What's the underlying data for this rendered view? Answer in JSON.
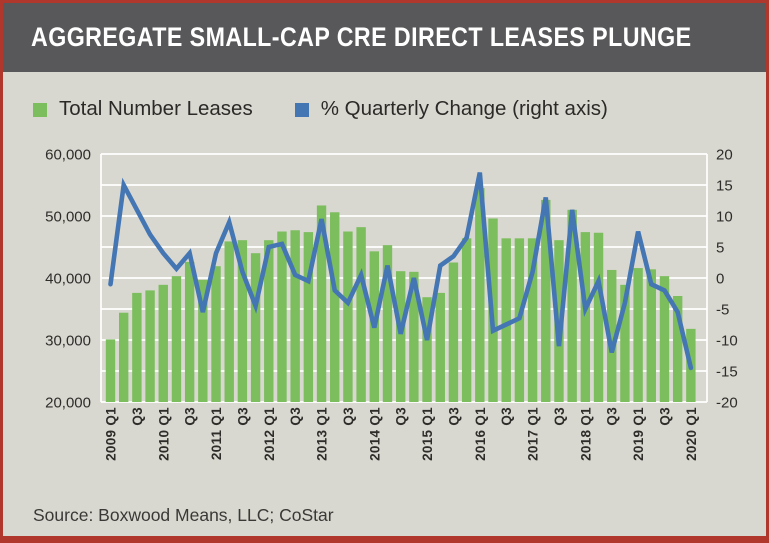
{
  "header": {
    "title": "AGGREGATE SMALL-CAP CRE DIRECT LEASES PLUNGE"
  },
  "legend": [
    {
      "label": "Total Number Leases",
      "color": "#7cbd5e"
    },
    {
      "label": "% Quarterly Change (right axis)",
      "color": "#4576b4"
    }
  ],
  "source": "Source: Boxwood Means, LLC; CoStar",
  "colors": {
    "bar": "#7cbd5e",
    "line": "#4576b4",
    "background": "#d9d8d0",
    "title_bar": "#58585a",
    "title_text": "#ffffff",
    "border": "#b0372b",
    "grid": "#ffffff",
    "axis_text": "#2e2d2a"
  },
  "chart_data": {
    "type": "bar",
    "title": "AGGREGATE SMALL-CAP CRE DIRECT LEASES PLUNGE",
    "xlabel": "",
    "ylabel_left": "Total Number Leases",
    "ylabel_right": "% Quarterly Change",
    "grid": true,
    "legend_position": "top",
    "categories": [
      "2009 Q1",
      "2009 Q2",
      "2009 Q3",
      "2009 Q4",
      "2010 Q1",
      "2010 Q2",
      "2010 Q3",
      "2010 Q4",
      "2011 Q1",
      "2011 Q2",
      "2011 Q3",
      "2011 Q4",
      "2012 Q1",
      "2012 Q2",
      "2012 Q3",
      "2012 Q4",
      "2013 Q1",
      "2013 Q2",
      "2013 Q3",
      "2013 Q4",
      "2014 Q1",
      "2014 Q2",
      "2014 Q3",
      "2014 Q4",
      "2015 Q1",
      "2015 Q2",
      "2015 Q3",
      "2015 Q4",
      "2016 Q1",
      "2016 Q2",
      "2016 Q3",
      "2016 Q4",
      "2017 Q1",
      "2017 Q2",
      "2017 Q3",
      "2017 Q4",
      "2018 Q1",
      "2018 Q2",
      "2018 Q3",
      "2018 Q4",
      "2019 Q1",
      "2019 Q2",
      "2019 Q3",
      "2019 Q4",
      "2020 Q1"
    ],
    "x_tick_labels": [
      "2009 Q1",
      "Q3",
      "2010 Q1",
      "Q3",
      "2011 Q1",
      "Q3",
      "2012 Q1",
      "Q3",
      "2013 Q1",
      "Q3",
      "2014 Q1",
      "Q3",
      "2015 Q1",
      "Q3",
      "2016 Q1",
      "Q3",
      "2017 Q1",
      "Q3",
      "2018 Q1",
      "Q3",
      "2019 Q1",
      "Q3",
      "2020 Q1"
    ],
    "series": [
      {
        "name": "Total Number Leases",
        "type": "bar",
        "axis": "left",
        "values": [
          30100,
          34400,
          37600,
          38000,
          38900,
          40300,
          42600,
          39700,
          41900,
          45900,
          46100,
          44000,
          46100,
          47500,
          47700,
          47400,
          51700,
          50600,
          47500,
          48200,
          44300,
          45300,
          41100,
          41000,
          36900,
          37600,
          42500,
          46400,
          54500,
          49600,
          46400,
          46400,
          46400,
          52600,
          46100,
          51000,
          47400,
          47300,
          41300,
          38900,
          41600,
          41400,
          40300,
          37100,
          31800
        ]
      },
      {
        "name": "% Quarterly Change (right axis)",
        "type": "line",
        "axis": "right",
        "values": [
          -1,
          15,
          11,
          7,
          4,
          1.5,
          4,
          -5.5,
          4,
          9,
          1,
          -4.5,
          5,
          5.5,
          0.5,
          -0.5,
          9.5,
          -2,
          -4,
          0.5,
          -8,
          2,
          -9,
          0,
          -10,
          2,
          3.5,
          6.5,
          17,
          -8.5,
          -7.5,
          -6.5,
          1,
          13,
          -11,
          11,
          -5,
          -0.5,
          -12,
          -4,
          7.5,
          -1,
          -2,
          -5.5,
          -14.5
        ]
      }
    ],
    "left_axis": {
      "min": 20000,
      "max": 60000,
      "tick_step": 10000,
      "grid_step": 5000
    },
    "right_axis": {
      "min": -20,
      "max": 20,
      "tick_step": 5
    }
  }
}
